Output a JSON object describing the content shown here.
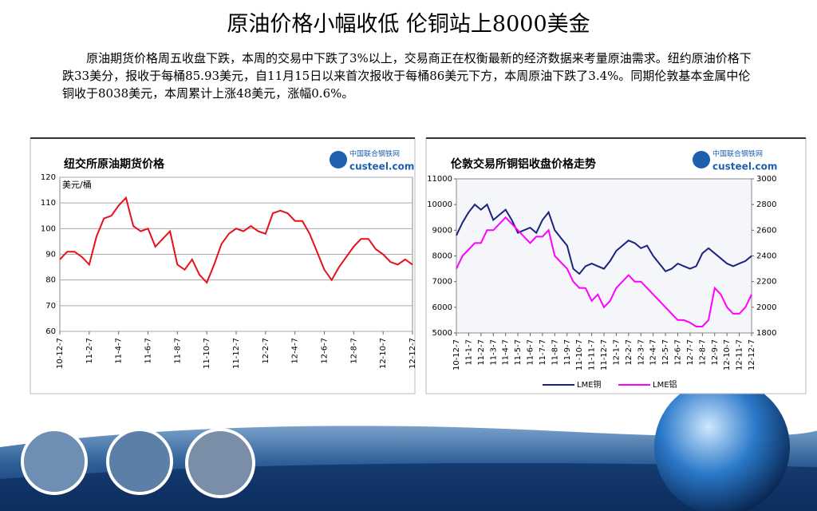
{
  "title": "原油价格小幅收低  伦铜站上8000美金",
  "paragraph": "原油期货价格周五收盘下跌，本周的交易中下跌了3%以上，交易商正在权衡最新的经济数据来考量原油需求。纽约原油价格下跌33美分，报收于每桶85.93美元，自11月15日以来首次报收于每桶86美元下方，本周原油下跌了3.4%。同期伦敦基本金属中伦铜收于8038美元，本周累计上涨48美元，涨幅0.6%。",
  "chart_data": [
    {
      "type": "line",
      "title": "纽交所原油期货价格",
      "source_logo": [
        "中国联合钢铁网",
        "custeel.com"
      ],
      "y_label": "美元/桶",
      "categories": [
        "10-12-7",
        null,
        null,
        null,
        "11-2-7",
        null,
        null,
        null,
        "11-4-7",
        null,
        null,
        null,
        "11-6-7",
        null,
        null,
        null,
        "11-8-7",
        null,
        null,
        null,
        "11-10-7",
        null,
        null,
        null,
        "11-12-7",
        null,
        null,
        null,
        "12-2-7",
        null,
        null,
        null,
        "12-4-7",
        null,
        null,
        null,
        "12-6-7",
        null,
        null,
        null,
        "12-8-7",
        null,
        null,
        null,
        "12-10-7",
        null,
        null,
        null,
        "12-12-7"
      ],
      "series": [
        {
          "color": "#e8101a",
          "values": [
            88,
            91,
            91,
            89,
            86,
            97,
            104,
            105,
            109,
            112,
            101,
            99,
            100,
            93,
            96,
            99,
            86,
            84,
            88,
            82,
            79,
            86,
            94,
            98,
            100,
            99,
            101,
            99,
            98,
            106,
            107,
            106,
            103,
            103,
            98,
            91,
            84,
            80,
            85,
            89,
            93,
            96,
            96,
            92,
            90,
            87,
            86,
            88,
            86
          ]
        }
      ],
      "ylim": [
        60,
        120
      ],
      "yticks": [
        60,
        70,
        80,
        90,
        100,
        110,
        120
      ],
      "grid": true
    },
    {
      "type": "line",
      "title": "伦敦交易所铜铝收盘价格走势",
      "source_logo": [
        "中国联合钢铁网",
        "custeel.com"
      ],
      "categories": [
        "10-12-7",
        null,
        "11-1-7",
        null,
        "11-2-7",
        null,
        "11-3-7",
        null,
        "11-4-7",
        null,
        "11-5-7",
        null,
        "11-6-7",
        null,
        "11-7-7",
        null,
        "11-8-7",
        null,
        "11-9-7",
        null,
        "11-10-7",
        null,
        "11-11-7",
        null,
        "11-12-7",
        null,
        "12-1-7",
        null,
        "12-2-7",
        null,
        "12-3-7",
        null,
        "12-4-7",
        null,
        "12-5-7",
        null,
        "12-6-7",
        null,
        "12-7-7",
        null,
        "12-8-7",
        null,
        "12-9-7",
        null,
        "12-10-7",
        null,
        "12-11-7",
        null,
        "12-12-7"
      ],
      "series": [
        {
          "name": "LME铜",
          "color": "#1a237e",
          "values": [
            8800,
            9300,
            9700,
            10000,
            9800,
            10000,
            9400,
            9600,
            9800,
            9400,
            8900,
            9000,
            9100,
            8900,
            9400,
            9700,
            9000,
            8700,
            8400,
            7500,
            7300,
            7600,
            7700,
            7600,
            7500,
            7800,
            8200,
            8400,
            8600,
            8500,
            8300,
            8400,
            8000,
            7700,
            7400,
            7500,
            7700,
            7600,
            7500,
            7600,
            8100,
            8300,
            8100,
            7900,
            7700,
            7600,
            7700,
            7800,
            8000
          ]
        },
        {
          "name": "LME铝",
          "color": "#ff00ff",
          "axis": "y2",
          "values": [
            2300,
            2400,
            2450,
            2500,
            2500,
            2600,
            2600,
            2650,
            2700,
            2650,
            2600,
            2550,
            2500,
            2550,
            2550,
            2600,
            2400,
            2350,
            2300,
            2200,
            2150,
            2150,
            2050,
            2100,
            2000,
            2050,
            2150,
            2200,
            2250,
            2200,
            2200,
            2150,
            2100,
            2050,
            2000,
            1950,
            1900,
            1900,
            1880,
            1850,
            1850,
            1900,
            2150,
            2100,
            2000,
            1950,
            1950,
            2000,
            2100
          ]
        }
      ],
      "ylim": [
        5000,
        11000
      ],
      "yticks": [
        5000,
        6000,
        7000,
        8000,
        9000,
        10000,
        11000
      ],
      "y2lim": [
        1800,
        3000
      ],
      "y2ticks": [
        1800,
        2000,
        2200,
        2400,
        2600,
        2800,
        3000
      ],
      "grid": false
    }
  ]
}
